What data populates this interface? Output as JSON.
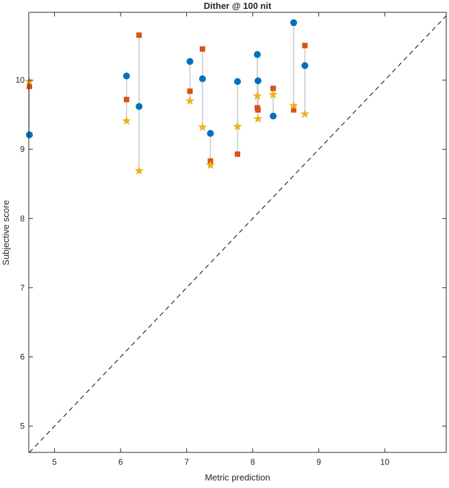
{
  "chart_data": {
    "type": "scatter",
    "title": "Dither @ 100 nit",
    "xlabel": "Metric prediction",
    "ylabel": "Subjective score",
    "xlim": [
      4.61,
      10.93
    ],
    "ylim": [
      4.62,
      10.98
    ],
    "xticks": [
      5,
      6,
      7,
      8,
      9,
      10
    ],
    "yticks": [
      5,
      6,
      7,
      8,
      9,
      10
    ],
    "grid": false,
    "reference_line": "y = x (dashed)",
    "colors": {
      "circle": "#0072BD",
      "square": "#D95319",
      "star": "#EDB120",
      "connector": "#C8C8C8"
    },
    "series": [
      {
        "name": "circle",
        "marker": "circle",
        "x": [
          4.62,
          6.09,
          6.28,
          7.05,
          7.24,
          7.36,
          7.77,
          8.07,
          8.08,
          8.31,
          8.62,
          8.79
        ],
        "y": [
          9.21,
          10.06,
          9.62,
          10.27,
          10.02,
          9.23,
          9.98,
          10.37,
          9.99,
          9.48,
          10.83,
          10.21
        ]
      },
      {
        "name": "square",
        "marker": "square",
        "x": [
          4.62,
          6.09,
          6.28,
          7.05,
          7.24,
          7.36,
          7.77,
          8.07,
          8.08,
          8.31,
          8.62,
          8.79
        ],
        "y": [
          9.91,
          9.72,
          10.65,
          9.84,
          10.45,
          8.83,
          8.93,
          9.6,
          9.57,
          9.88,
          9.57,
          10.5
        ]
      },
      {
        "name": "star",
        "marker": "star",
        "x": [
          4.62,
          6.09,
          6.28,
          7.05,
          7.24,
          7.36,
          7.77,
          8.07,
          8.08,
          8.31,
          8.62,
          8.79
        ],
        "y": [
          9.98,
          9.41,
          8.69,
          9.7,
          9.32,
          8.77,
          9.33,
          9.77,
          9.44,
          9.79,
          9.63,
          9.51
        ]
      }
    ]
  }
}
